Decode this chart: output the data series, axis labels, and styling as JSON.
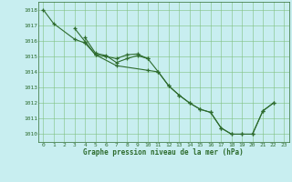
{
  "title": "Graphe pression niveau de la mer (hPa)",
  "background_color": "#c8eef0",
  "line_color": "#2d6b2d",
  "grid_color": "#80c080",
  "xlim": [
    -0.5,
    23.5
  ],
  "ylim": [
    1009.5,
    1018.5
  ],
  "yticks": [
    1010,
    1011,
    1012,
    1013,
    1014,
    1015,
    1016,
    1017,
    1018
  ],
  "xticks": [
    0,
    1,
    2,
    3,
    4,
    5,
    6,
    7,
    8,
    9,
    10,
    11,
    12,
    13,
    14,
    15,
    16,
    17,
    18,
    19,
    20,
    21,
    22,
    23
  ],
  "series1_x": [
    0,
    1,
    3,
    4,
    5,
    7,
    10,
    11,
    12,
    13,
    14,
    15,
    16,
    17,
    18,
    19,
    20,
    21,
    22
  ],
  "series1_y": [
    1018.0,
    1017.1,
    1016.1,
    1015.85,
    1015.1,
    1014.4,
    1014.1,
    1014.0,
    1013.1,
    1012.5,
    1012.0,
    1011.6,
    1011.4,
    1010.4,
    1010.0,
    1010.0,
    1010.0,
    1011.5,
    1012.0
  ],
  "series2_x": [
    3,
    4,
    5,
    6,
    7,
    8,
    9,
    10
  ],
  "series2_y": [
    1016.8,
    1015.95,
    1015.1,
    1015.0,
    1014.85,
    1015.1,
    1015.15,
    1014.85
  ],
  "series3_x": [
    4,
    5,
    6,
    7,
    8,
    9,
    10,
    11,
    12,
    13,
    14,
    15,
    16,
    17,
    18,
    19,
    20,
    21,
    22
  ],
  "series3_y": [
    1016.2,
    1015.2,
    1015.05,
    1014.6,
    1014.85,
    1015.05,
    1014.85,
    1014.0,
    1013.1,
    1012.5,
    1012.0,
    1011.6,
    1011.4,
    1010.4,
    1010.0,
    1010.0,
    1010.0,
    1011.5,
    1012.0
  ]
}
